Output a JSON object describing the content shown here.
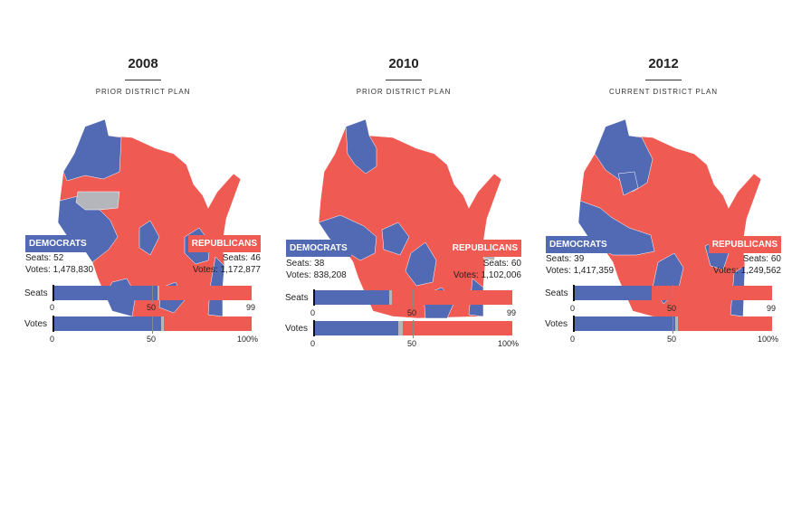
{
  "labels": {
    "seats": "Seats",
    "votes": "Votes",
    "dem": "DEMOCRATS",
    "rep": "REPUBLICANS"
  },
  "colors": {
    "dem": "#5269b4",
    "rep": "#ef5b52",
    "other": "#b4b6bb"
  },
  "chart_data": [
    {
      "type": "bar",
      "title": "2008",
      "subtitle": "PRIOR DISTRICT PLAN",
      "dem": {
        "seats_text": "Seats: 52",
        "votes_text": "Votes: 1,478,830"
      },
      "rep": {
        "seats_text": "Seats: 46",
        "votes_text": "Votes: 1,172,877"
      },
      "seats": {
        "dem": 52,
        "other": 1,
        "rep": 46,
        "total": 99,
        "ticks": [
          "0",
          "50",
          "99"
        ]
      },
      "votes": {
        "dem": 54.6,
        "other": 1.5,
        "rep": 43.9,
        "total": 100,
        "ticks": [
          "0",
          "50",
          "100%"
        ]
      }
    },
    {
      "type": "bar",
      "title": "2010",
      "subtitle": "PRIOR DISTRICT PLAN",
      "dem": {
        "seats_text": "Seats: 38",
        "votes_text": "Votes: 838,208"
      },
      "rep": {
        "seats_text": "Seats: 60",
        "votes_text": "Votes: 1,102,006"
      },
      "seats": {
        "dem": 38,
        "other": 1,
        "rep": 60,
        "total": 99,
        "ticks": [
          "0",
          "50",
          "99"
        ]
      },
      "votes": {
        "dem": 42.6,
        "other": 2.6,
        "rep": 54.8,
        "total": 100,
        "ticks": [
          "0",
          "50",
          "100%"
        ]
      }
    },
    {
      "type": "bar",
      "title": "2012",
      "subtitle": "CURRENT DISTRICT PLAN",
      "dem": {
        "seats_text": "Seats: 39",
        "votes_text": "Votes: 1,417,359"
      },
      "rep": {
        "seats_text": "Seats: 60",
        "votes_text": "Votes: 1,249,562"
      },
      "seats": {
        "dem": 39,
        "other": 0,
        "rep": 60,
        "total": 99,
        "ticks": [
          "0",
          "50",
          "99"
        ]
      },
      "votes": {
        "dem": 51.4,
        "other": 1.2,
        "rep": 47.4,
        "total": 100,
        "ticks": [
          "0",
          "50",
          "100%"
        ]
      }
    }
  ]
}
